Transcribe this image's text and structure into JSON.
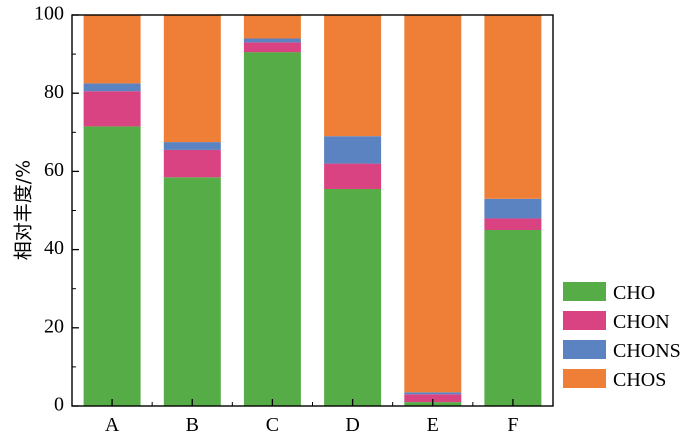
{
  "chart_data": {
    "type": "bar",
    "stacked": true,
    "categories": [
      "A",
      "B",
      "C",
      "D",
      "E",
      "F"
    ],
    "series": [
      {
        "name": "CHO",
        "color": "#56ad47",
        "values": [
          71.5,
          58.5,
          90.5,
          55.5,
          1.0,
          45.0
        ]
      },
      {
        "name": "CHON",
        "color": "#d94381",
        "values": [
          9.0,
          7.0,
          2.5,
          6.5,
          2.0,
          3.0
        ]
      },
      {
        "name": "CHONS",
        "color": "#5b82c1",
        "values": [
          2.0,
          2.0,
          1.0,
          7.0,
          0.5,
          5.0
        ]
      },
      {
        "name": "CHOS",
        "color": "#ef7f37",
        "values": [
          17.5,
          32.5,
          6.0,
          31.0,
          96.5,
          47.0
        ]
      }
    ],
    "title": "",
    "xlabel": "",
    "ylabel": "相对丰度/%",
    "ylim": [
      0,
      100
    ],
    "yticks": [
      0,
      20,
      40,
      60,
      80,
      100
    ],
    "grid": false,
    "legend_position": "bottom-right, outside plot area"
  }
}
